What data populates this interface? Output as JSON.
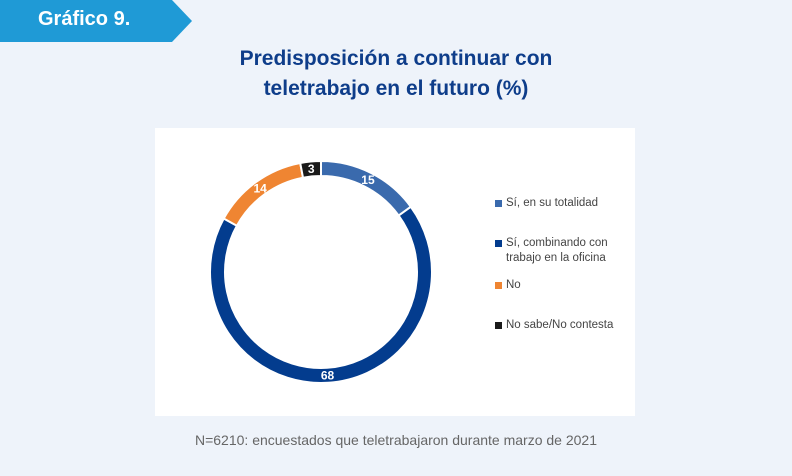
{
  "badge": {
    "label": "Gráfico 9.",
    "color": "#1f9ad6"
  },
  "title_lines": [
    "Predisposición  a continuar con",
    "teletrabajo  en el futuro (%)"
  ],
  "note": "N=6210: encuestados que teletrabajaron durante marzo de 2021",
  "chart_data": {
    "type": "pie",
    "variant": "donut",
    "title": "Predisposición a continuar con teletrabajo en el futuro (%)",
    "legend_position": "right",
    "categories": [
      "Sí, en su totalidad",
      "Sí, combinando con trabajo en la oficina",
      "No",
      "No sabe/No contesta"
    ],
    "legend_lines": [
      [
        "Sí, en su totalidad"
      ],
      [
        "Sí, combinando con",
        "trabajo en la oficina"
      ],
      [
        "No"
      ],
      [
        "No sabe/No contesta"
      ]
    ],
    "values": [
      15,
      68,
      14,
      3
    ],
    "labels": [
      "15",
      "68",
      "14",
      "3"
    ],
    "colors": [
      "#3a6aad",
      "#033c8e",
      "#ef8532",
      "#1a1a1a"
    ]
  }
}
